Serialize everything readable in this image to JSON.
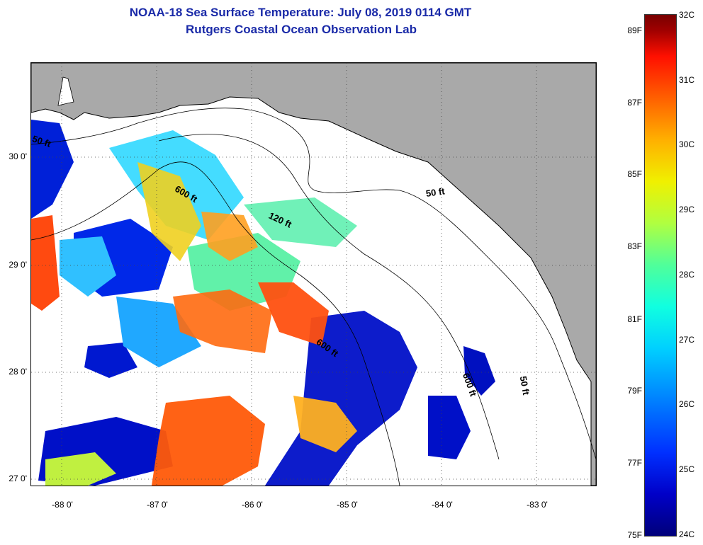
{
  "title": {
    "line1": "NOAA-18 Sea Surface Temperature:  July 08, 2019 0114 GMT",
    "line2": "Rutgers Coastal Ocean Observation Lab"
  },
  "map": {
    "region": "Eastern Gulf of Mexico / Florida Big Bend",
    "land_color": "#a9a9a9",
    "cloud_color": "#ffffff",
    "lat_labels": [
      "30 0'",
      "29 0'",
      "28 0'",
      "27 0'"
    ],
    "lon_labels": [
      "-88 0'",
      "-87 0'",
      "-86 0'",
      "-85 0'",
      "-84 0'",
      "-83 0'"
    ],
    "contour_labels": [
      "50 ft",
      "600 ft",
      "120 ft",
      "600 ft",
      "50 ft",
      "600 ft",
      "50 ft"
    ]
  },
  "colorbar": {
    "fahrenheit": [
      "89F",
      "87F",
      "85F",
      "83F",
      "81F",
      "79F",
      "77F",
      "75F"
    ],
    "celsius": [
      "32C",
      "31C",
      "30C",
      "29C",
      "28C",
      "27C",
      "26C",
      "25C",
      "24C"
    ]
  }
}
